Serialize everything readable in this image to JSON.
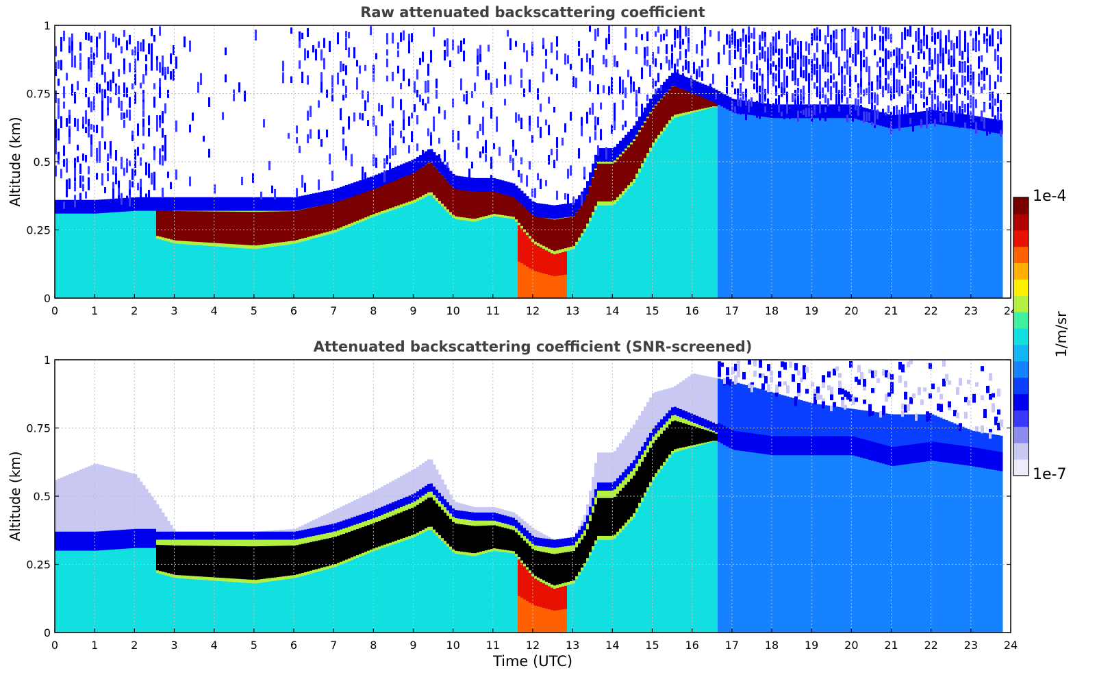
{
  "colors": {
    "colormap": [
      "#ececfa",
      "#c8c8f2",
      "#8c8cef",
      "#3a3aff",
      "#0000f0",
      "#0b3fff",
      "#1682ff",
      "#12b6f4",
      "#12e0e0",
      "#40f0a0",
      "#b4f040",
      "#fff000",
      "#ffb000",
      "#ff6000",
      "#e81000",
      "#b00000",
      "#7a0000"
    ],
    "saturated_screened": "#000000",
    "grid": "#bdbdbd"
  },
  "colorbar": {
    "max_label": "1e-4",
    "min_label": "1e-7",
    "unit_label": "1/m/sr"
  },
  "chart_data": [
    {
      "type": "heatmap",
      "title": "Raw attenuated backscattering coefficient",
      "xlabel": "",
      "ylabel": "Altitude (km)",
      "xlim": [
        0,
        24
      ],
      "ylim": [
        0,
        1
      ],
      "xticks": [
        "0",
        "1",
        "2",
        "3",
        "4",
        "5",
        "6",
        "7",
        "8",
        "9",
        "10",
        "11",
        "12",
        "13",
        "14",
        "15",
        "16",
        "17",
        "18",
        "19",
        "20",
        "21",
        "22",
        "23",
        "24"
      ],
      "yticks": [
        "0",
        "0.25",
        "0.5",
        "0.75",
        "1"
      ],
      "grid": true,
      "data_end_hour": 23.8,
      "layer_top_km": [
        [
          0,
          0.33
        ],
        [
          1,
          0.33
        ],
        [
          2,
          0.34
        ],
        [
          2.5,
          0.34
        ],
        [
          3,
          0.34
        ],
        [
          4,
          0.34
        ],
        [
          5,
          0.34
        ],
        [
          6,
          0.34
        ],
        [
          7,
          0.37
        ],
        [
          8,
          0.42
        ],
        [
          9,
          0.48
        ],
        [
          9.4,
          0.52
        ],
        [
          10,
          0.42
        ],
        [
          10.5,
          0.41
        ],
        [
          11,
          0.41
        ],
        [
          11.5,
          0.39
        ],
        [
          12,
          0.32
        ],
        [
          12.5,
          0.31
        ],
        [
          13,
          0.32
        ],
        [
          13.3,
          0.38
        ],
        [
          13.6,
          0.52
        ],
        [
          14,
          0.52
        ],
        [
          14.5,
          0.6
        ],
        [
          15,
          0.72
        ],
        [
          15.5,
          0.8
        ],
        [
          16,
          0.77
        ],
        [
          16.5,
          0.74
        ],
        [
          17,
          0.7
        ],
        [
          18,
          0.68
        ],
        [
          19,
          0.68
        ],
        [
          20,
          0.68
        ],
        [
          21,
          0.64
        ],
        [
          22,
          0.66
        ],
        [
          23,
          0.64
        ],
        [
          23.8,
          0.62
        ]
      ],
      "layer_bottom_km": [
        [
          2.5,
          0.22
        ],
        [
          3,
          0.2
        ],
        [
          4,
          0.19
        ],
        [
          5,
          0.18
        ],
        [
          6,
          0.2
        ],
        [
          7,
          0.24
        ],
        [
          8,
          0.3
        ],
        [
          9,
          0.35
        ],
        [
          9.4,
          0.38
        ],
        [
          10,
          0.29
        ],
        [
          10.5,
          0.28
        ],
        [
          11,
          0.3
        ],
        [
          11.5,
          0.29
        ],
        [
          12,
          0.2
        ],
        [
          12.5,
          0.16
        ],
        [
          13,
          0.18
        ],
        [
          13.3,
          0.25
        ],
        [
          13.6,
          0.34
        ],
        [
          14,
          0.34
        ],
        [
          14.5,
          0.42
        ],
        [
          15,
          0.56
        ],
        [
          15.5,
          0.66
        ],
        [
          16,
          0.68
        ],
        [
          16.5,
          0.7
        ]
      ],
      "precip_window_hours": [
        11.6,
        12.8
      ],
      "noise_above_layer": true
    },
    {
      "type": "heatmap",
      "title": "Attenuated backscattering coefficient (SNR-screened)",
      "xlabel": "Time (UTC)",
      "ylabel": "Altitude (km)",
      "xlim": [
        0,
        24
      ],
      "ylim": [
        0,
        1
      ],
      "xticks": [
        "0",
        "1",
        "2",
        "3",
        "4",
        "5",
        "6",
        "7",
        "8",
        "9",
        "10",
        "11",
        "12",
        "13",
        "14",
        "15",
        "16",
        "17",
        "18",
        "19",
        "20",
        "21",
        "22",
        "23",
        "24"
      ],
      "yticks": [
        "0",
        "0.25",
        "0.5",
        "0.75",
        "1"
      ],
      "grid": true,
      "data_end_hour": 23.8,
      "screened_top_km": [
        [
          0,
          0.56
        ],
        [
          1,
          0.62
        ],
        [
          2,
          0.58
        ],
        [
          2.5,
          0.48
        ],
        [
          3,
          0.37
        ],
        [
          4,
          0.37
        ],
        [
          5,
          0.37
        ],
        [
          6,
          0.38
        ],
        [
          7,
          0.45
        ],
        [
          8,
          0.52
        ],
        [
          9,
          0.6
        ],
        [
          9.4,
          0.64
        ],
        [
          10,
          0.48
        ],
        [
          10.5,
          0.46
        ],
        [
          11,
          0.46
        ],
        [
          11.5,
          0.44
        ],
        [
          12,
          0.38
        ],
        [
          12.5,
          0.34
        ],
        [
          13,
          0.35
        ],
        [
          13.3,
          0.44
        ],
        [
          13.6,
          0.66
        ],
        [
          14,
          0.66
        ],
        [
          14.5,
          0.76
        ],
        [
          15,
          0.88
        ],
        [
          15.5,
          0.9
        ],
        [
          16,
          0.95
        ],
        [
          17,
          0.92
        ],
        [
          18,
          0.88
        ],
        [
          19,
          0.84
        ],
        [
          20,
          0.82
        ],
        [
          21,
          0.8
        ],
        [
          22,
          0.8
        ],
        [
          23,
          0.74
        ],
        [
          23.8,
          0.72
        ]
      ],
      "noise_patches": true
    }
  ]
}
